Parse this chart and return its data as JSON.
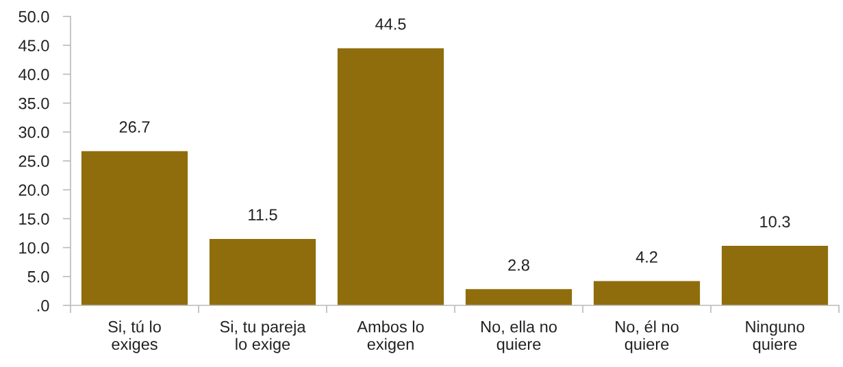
{
  "chart_data": {
    "type": "bar",
    "categories": [
      "Si, tú lo\nexiges",
      "Si, tu pareja\nlo exige",
      "Ambos lo\nexigen",
      "No, ella no\nquiere",
      "No, él no\nquiere",
      "Ninguno\nquiere"
    ],
    "values": [
      26.7,
      11.5,
      44.5,
      2.8,
      4.2,
      10.3
    ],
    "color": "#8f6d0c",
    "ylim": [
      0,
      50
    ],
    "yticks": [
      {
        "value": 0,
        "label": ".0"
      },
      {
        "value": 5,
        "label": "5.0"
      },
      {
        "value": 10,
        "label": "10.0"
      },
      {
        "value": 15,
        "label": "15.0"
      },
      {
        "value": 20,
        "label": "20.0"
      },
      {
        "value": 25,
        "label": "25.0"
      },
      {
        "value": 30,
        "label": "30.0"
      },
      {
        "value": 35,
        "label": "35.0"
      },
      {
        "value": 40,
        "label": "40.0"
      },
      {
        "value": 45,
        "label": "45.0"
      },
      {
        "value": 50,
        "label": "50.0"
      }
    ],
    "data_labels": true,
    "grid": false,
    "legend": false
  }
}
